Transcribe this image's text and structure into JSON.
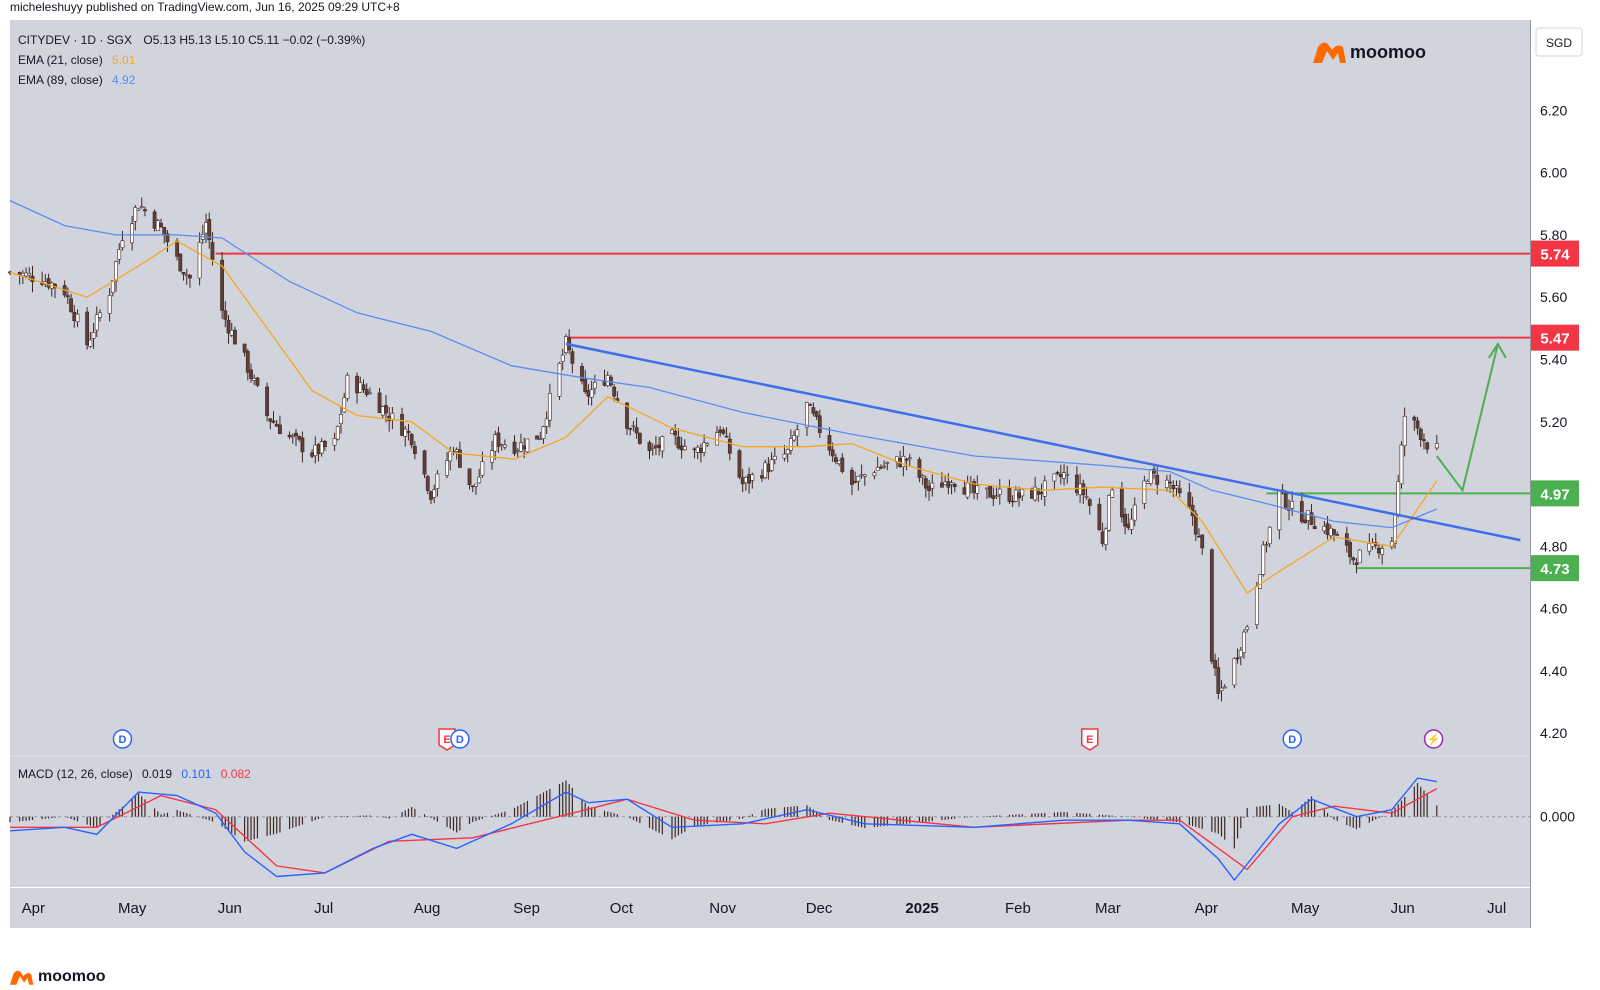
{
  "published": "micheleshuyy published on TradingView.com, Jun 16, 2025 09:29 UTC+8",
  "brand": "moomoo",
  "currency": "SGD",
  "legend": {
    "symbol_line": "CITYDEV · 1D · SGX",
    "ohlc": "O5.13  H5.13  L5.10  C5.11  −0.02 (−0.39%)",
    "ema21_label": "EMA (21, close)",
    "ema21_value": "5.01",
    "ema89_label": "EMA (89, close)",
    "ema89_value": "4.92",
    "macd_label": "MACD (12, 26, close)",
    "macd_hist": "0.019",
    "macd_line": "0.101",
    "macd_signal": "0.082"
  },
  "colors": {
    "background": "#d1d4dc",
    "up": "#ffffff",
    "down": "#5d4037",
    "ema21": "#f5a623",
    "ema89": "#5b8def",
    "resistance": "#f23645",
    "support": "#4caf50",
    "trendline": "#3f6ee8",
    "macd": "#2962ff",
    "signal": "#f23645"
  },
  "chart_data": {
    "type": "candlestick",
    "symbol": "CITYDEV",
    "interval": "1D",
    "exchange": "SGX",
    "y_ticks": [
      "6.20",
      "6.00",
      "5.80",
      "5.60",
      "5.40",
      "5.20",
      "4.80",
      "4.60",
      "4.40",
      "4.20"
    ],
    "ylim": [
      4.13,
      6.49
    ],
    "x_ticks": [
      {
        "label": "Apr",
        "date": "2024-04-01"
      },
      {
        "label": "May",
        "date": "2024-05-01"
      },
      {
        "label": "Jun",
        "date": "2024-06-01"
      },
      {
        "label": "Jul",
        "date": "2024-07-01"
      },
      {
        "label": "Aug",
        "date": "2024-08-01"
      },
      {
        "label": "Sep",
        "date": "2024-09-01"
      },
      {
        "label": "Oct",
        "date": "2024-10-01"
      },
      {
        "label": "Nov",
        "date": "2024-11-01"
      },
      {
        "label": "Dec",
        "date": "2024-12-01"
      },
      {
        "label": "2025",
        "date": "2025-01-01",
        "bold": true
      },
      {
        "label": "Feb",
        "date": "2025-02-01"
      },
      {
        "label": "Mar",
        "date": "2025-03-01"
      },
      {
        "label": "Apr",
        "date": "2025-04-01"
      },
      {
        "label": "May",
        "date": "2025-05-01"
      },
      {
        "label": "Jun",
        "date": "2025-06-01"
      },
      {
        "label": "Jul",
        "date": "2025-07-01"
      }
    ],
    "xlim": [
      "2024-03-29",
      "2025-07-15"
    ],
    "close_path": [
      [
        "2024-03-29",
        5.68
      ],
      [
        "2024-04-08",
        5.66
      ],
      [
        "2024-04-15",
        5.62
      ],
      [
        "2024-04-22",
        5.45
      ],
      [
        "2024-04-29",
        5.62
      ],
      [
        "2024-05-03",
        5.8
      ],
      [
        "2024-05-08",
        5.9
      ],
      [
        "2024-05-15",
        5.82
      ],
      [
        "2024-05-20",
        5.72
      ],
      [
        "2024-05-24",
        5.66
      ],
      [
        "2024-05-29",
        5.84
      ],
      [
        "2024-06-03",
        5.55
      ],
      [
        "2024-06-10",
        5.4
      ],
      [
        "2024-06-17",
        5.22
      ],
      [
        "2024-06-24",
        5.15
      ],
      [
        "2024-07-01",
        5.1
      ],
      [
        "2024-07-08",
        5.13
      ],
      [
        "2024-07-12",
        5.33
      ],
      [
        "2024-07-18",
        5.3
      ],
      [
        "2024-07-25",
        5.22
      ],
      [
        "2024-08-01",
        5.15
      ],
      [
        "2024-08-07",
        4.97
      ],
      [
        "2024-08-14",
        5.12
      ],
      [
        "2024-08-20",
        4.98
      ],
      [
        "2024-08-27",
        5.14
      ],
      [
        "2024-09-03",
        5.12
      ],
      [
        "2024-09-10",
        5.16
      ],
      [
        "2024-09-18",
        5.45
      ],
      [
        "2024-09-24",
        5.28
      ],
      [
        "2024-10-01",
        5.35
      ],
      [
        "2024-10-07",
        5.2
      ],
      [
        "2024-10-14",
        5.1
      ],
      [
        "2024-10-21",
        5.15
      ],
      [
        "2024-10-28",
        5.1
      ],
      [
        "2024-11-05",
        5.18
      ],
      [
        "2024-11-12",
        5.0
      ],
      [
        "2024-11-19",
        5.05
      ],
      [
        "2024-11-26",
        5.1
      ],
      [
        "2024-12-02",
        5.25
      ],
      [
        "2024-12-09",
        5.12
      ],
      [
        "2024-12-16",
        5.0
      ],
      [
        "2024-12-23",
        5.05
      ],
      [
        "2025-01-02",
        5.08
      ],
      [
        "2025-01-09",
        4.98
      ],
      [
        "2025-01-16",
        5.02
      ],
      [
        "2025-01-23",
        4.97
      ],
      [
        "2025-01-30",
        4.97
      ],
      [
        "2025-02-06",
        4.96
      ],
      [
        "2025-02-13",
        4.98
      ],
      [
        "2025-02-20",
        5.03
      ],
      [
        "2025-02-27",
        4.96
      ],
      [
        "2025-03-04",
        4.82
      ],
      [
        "2025-03-07",
        5.0
      ],
      [
        "2025-03-12",
        4.85
      ],
      [
        "2025-03-18",
        5.03
      ],
      [
        "2025-03-25",
        5.0
      ],
      [
        "2025-04-01",
        4.9
      ],
      [
        "2025-04-04",
        4.78
      ],
      [
        "2025-04-07",
        4.45
      ],
      [
        "2025-04-09",
        4.32
      ],
      [
        "2025-04-14",
        4.43
      ],
      [
        "2025-04-18",
        4.55
      ],
      [
        "2025-04-23",
        4.78
      ],
      [
        "2025-04-28",
        4.97
      ],
      [
        "2025-05-02",
        4.92
      ],
      [
        "2025-05-09",
        4.88
      ],
      [
        "2025-05-15",
        4.84
      ],
      [
        "2025-05-21",
        4.76
      ],
      [
        "2025-05-27",
        4.79
      ],
      [
        "2025-06-02",
        4.82
      ],
      [
        "2025-06-04",
        5.0
      ],
      [
        "2025-06-06",
        5.22
      ],
      [
        "2025-06-10",
        5.18
      ],
      [
        "2025-06-13",
        5.13
      ],
      [
        "2025-06-16",
        5.11
      ]
    ],
    "ema21_path": [
      [
        "2024-03-29",
        5.68
      ],
      [
        "2024-04-22",
        5.6
      ],
      [
        "2024-05-08",
        5.7
      ],
      [
        "2024-05-20",
        5.78
      ],
      [
        "2024-06-03",
        5.7
      ],
      [
        "2024-06-17",
        5.5
      ],
      [
        "2024-07-01",
        5.3
      ],
      [
        "2024-07-15",
        5.22
      ],
      [
        "2024-08-01",
        5.2
      ],
      [
        "2024-08-14",
        5.1
      ],
      [
        "2024-09-02",
        5.08
      ],
      [
        "2024-09-18",
        5.15
      ],
      [
        "2024-10-01",
        5.28
      ],
      [
        "2024-10-21",
        5.18
      ],
      [
        "2024-11-12",
        5.12
      ],
      [
        "2024-12-02",
        5.12
      ],
      [
        "2024-12-16",
        5.13
      ],
      [
        "2025-01-02",
        5.06
      ],
      [
        "2025-01-23",
        5.0
      ],
      [
        "2025-02-13",
        4.98
      ],
      [
        "2025-03-04",
        4.99
      ],
      [
        "2025-03-25",
        4.98
      ],
      [
        "2025-04-04",
        4.88
      ],
      [
        "2025-04-18",
        4.65
      ],
      [
        "2025-04-28",
        4.72
      ],
      [
        "2025-05-15",
        4.83
      ],
      [
        "2025-06-02",
        4.8
      ],
      [
        "2025-06-10",
        4.92
      ],
      [
        "2025-06-16",
        5.01
      ]
    ],
    "ema89_path": [
      [
        "2024-03-29",
        5.91
      ],
      [
        "2024-04-15",
        5.83
      ],
      [
        "2024-05-01",
        5.8
      ],
      [
        "2024-05-20",
        5.8
      ],
      [
        "2024-06-03",
        5.79
      ],
      [
        "2024-06-24",
        5.65
      ],
      [
        "2024-07-15",
        5.55
      ],
      [
        "2024-08-07",
        5.49
      ],
      [
        "2024-09-01",
        5.38
      ],
      [
        "2024-09-24",
        5.34
      ],
      [
        "2024-10-14",
        5.31
      ],
      [
        "2024-11-12",
        5.23
      ],
      [
        "2024-12-16",
        5.16
      ],
      [
        "2025-01-23",
        5.09
      ],
      [
        "2025-03-04",
        5.06
      ],
      [
        "2025-03-25",
        5.04
      ],
      [
        "2025-04-07",
        4.98
      ],
      [
        "2025-04-23",
        4.94
      ],
      [
        "2025-05-15",
        4.88
      ],
      [
        "2025-06-02",
        4.86
      ],
      [
        "2025-06-16",
        4.92
      ]
    ],
    "resistance_levels": [
      {
        "label": "5.74",
        "value": 5.74,
        "start": "2024-06-01"
      },
      {
        "label": "5.47",
        "value": 5.47,
        "start": "2024-09-18"
      }
    ],
    "support_levels": [
      {
        "label": "4.97",
        "value": 4.97,
        "start": "2025-04-24"
      },
      {
        "label": "4.73",
        "value": 4.73,
        "start": "2025-05-22"
      }
    ],
    "trendline": {
      "start": [
        "2024-09-18",
        5.45
      ],
      "end": [
        "2025-07-12",
        4.82
      ]
    },
    "projection": [
      [
        "2025-06-16",
        5.09
      ],
      [
        "2025-06-24",
        4.98
      ],
      [
        "2025-07-05",
        5.45
      ]
    ],
    "event_markers": [
      {
        "date": "2024-05-03",
        "label": "D",
        "kind": "dividend"
      },
      {
        "date": "2024-08-12",
        "label": "E",
        "kind": "earnings"
      },
      {
        "date": "2024-08-16",
        "label": "D",
        "kind": "dividend"
      },
      {
        "date": "2025-02-28",
        "label": "E",
        "kind": "earnings"
      },
      {
        "date": "2025-05-02",
        "label": "D",
        "kind": "dividend"
      },
      {
        "date": "2025-06-15",
        "label": "⚡",
        "kind": "news"
      }
    ],
    "macd_ticks": [
      "0.000"
    ],
    "macd_ylim": [
      -0.2,
      0.17
    ],
    "macd_path": [
      [
        "2024-03-29",
        -0.04
      ],
      [
        "2024-04-15",
        -0.03
      ],
      [
        "2024-04-25",
        -0.05
      ],
      [
        "2024-05-08",
        0.07
      ],
      [
        "2024-05-20",
        0.06
      ],
      [
        "2024-06-01",
        0.01
      ],
      [
        "2024-06-10",
        -0.1
      ],
      [
        "2024-06-20",
        -0.17
      ],
      [
        "2024-07-05",
        -0.16
      ],
      [
        "2024-07-20",
        -0.09
      ],
      [
        "2024-08-01",
        -0.05
      ],
      [
        "2024-08-15",
        -0.09
      ],
      [
        "2024-09-01",
        -0.02
      ],
      [
        "2024-09-18",
        0.07
      ],
      [
        "2024-09-25",
        0.04
      ],
      [
        "2024-10-07",
        0.05
      ],
      [
        "2024-10-21",
        -0.03
      ],
      [
        "2024-11-12",
        -0.02
      ],
      [
        "2024-12-02",
        0.02
      ],
      [
        "2024-12-20",
        -0.02
      ],
      [
        "2025-01-23",
        -0.03
      ],
      [
        "2025-02-20",
        -0.01
      ],
      [
        "2025-03-12",
        -0.01
      ],
      [
        "2025-03-28",
        -0.02
      ],
      [
        "2025-04-09",
        -0.12
      ],
      [
        "2025-04-14",
        -0.18
      ],
      [
        "2025-04-28",
        -0.02
      ],
      [
        "2025-05-08",
        0.05
      ],
      [
        "2025-05-22",
        0.0
      ],
      [
        "2025-06-02",
        0.02
      ],
      [
        "2025-06-10",
        0.11
      ],
      [
        "2025-06-16",
        0.1
      ]
    ],
    "signal_path": [
      [
        "2024-03-29",
        -0.03
      ],
      [
        "2024-04-25",
        -0.03
      ],
      [
        "2024-05-15",
        0.06
      ],
      [
        "2024-06-01",
        0.02
      ],
      [
        "2024-06-20",
        -0.14
      ],
      [
        "2024-07-05",
        -0.16
      ],
      [
        "2024-07-25",
        -0.07
      ],
      [
        "2024-08-20",
        -0.06
      ],
      [
        "2024-09-20",
        0.01
      ],
      [
        "2024-10-07",
        0.05
      ],
      [
        "2024-10-28",
        -0.01
      ],
      [
        "2024-11-19",
        -0.02
      ],
      [
        "2024-12-09",
        0.01
      ],
      [
        "2025-01-23",
        -0.03
      ],
      [
        "2025-03-12",
        -0.01
      ],
      [
        "2025-03-28",
        -0.01
      ],
      [
        "2025-04-18",
        -0.15
      ],
      [
        "2025-05-02",
        0.0
      ],
      [
        "2025-05-15",
        0.03
      ],
      [
        "2025-06-02",
        0.01
      ],
      [
        "2025-06-16",
        0.08
      ]
    ]
  }
}
